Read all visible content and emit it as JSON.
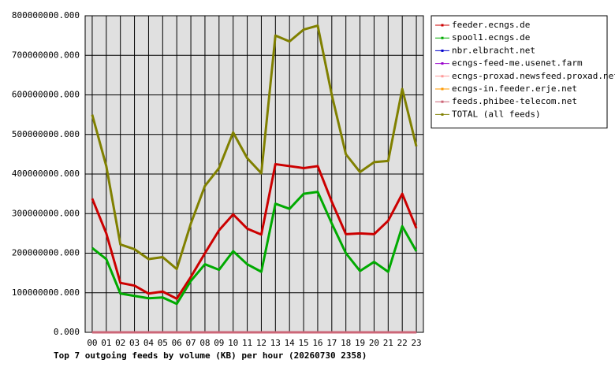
{
  "chart_data": {
    "type": "line",
    "title": "Top 7 outgoing feeds by volume (KB) per hour (20260730 2358)",
    "categories": [
      "00",
      "01",
      "02",
      "03",
      "04",
      "05",
      "06",
      "07",
      "08",
      "09",
      "10",
      "11",
      "12",
      "13",
      "14",
      "15",
      "16",
      "17",
      "18",
      "19",
      "20",
      "21",
      "22",
      "23"
    ],
    "ylim": [
      0,
      800000000
    ],
    "yticks": [
      {
        "value": 0,
        "label": "0.000"
      },
      {
        "value": 100000000,
        "label": "100000000.000"
      },
      {
        "value": 200000000,
        "label": "200000000.000"
      },
      {
        "value": 300000000,
        "label": "300000000.000"
      },
      {
        "value": 400000000,
        "label": "400000000.000"
      },
      {
        "value": 500000000,
        "label": "500000000.000"
      },
      {
        "value": 600000000,
        "label": "600000000.000"
      },
      {
        "value": 700000000,
        "label": "700000000.000"
      },
      {
        "value": 800000000,
        "label": "800000000.000"
      }
    ],
    "grid": true,
    "legend": "right",
    "series": [
      {
        "name": "feeder.ecngs.de",
        "color": "#cc0000",
        "values": [
          338000000,
          250000000,
          125000000,
          118000000,
          98000000,
          103000000,
          85000000,
          140000000,
          200000000,
          258000000,
          298000000,
          262000000,
          247000000,
          425000000,
          420000000,
          415000000,
          420000000,
          330000000,
          248000000,
          250000000,
          248000000,
          282000000,
          350000000,
          263000000
        ]
      },
      {
        "name": "spool1.ecngs.de",
        "color": "#00aa00",
        "values": [
          213000000,
          185000000,
          98000000,
          92000000,
          86000000,
          88000000,
          72000000,
          130000000,
          172000000,
          158000000,
          205000000,
          172000000,
          153000000,
          325000000,
          312000000,
          350000000,
          355000000,
          275000000,
          200000000,
          155000000,
          178000000,
          153000000,
          268000000,
          205000000
        ]
      },
      {
        "name": "nbr.elbracht.net",
        "color": "#0000cc",
        "values": [
          0,
          0,
          0,
          0,
          0,
          0,
          0,
          0,
          0,
          0,
          0,
          0,
          0,
          0,
          0,
          0,
          0,
          0,
          0,
          0,
          0,
          0,
          0,
          0
        ]
      },
      {
        "name": "ecngs-feed-me.usenet.farm",
        "color": "#9900cc",
        "values": [
          0,
          0,
          0,
          0,
          0,
          0,
          0,
          0,
          0,
          0,
          0,
          0,
          0,
          0,
          0,
          0,
          0,
          0,
          0,
          0,
          0,
          0,
          0,
          0
        ]
      },
      {
        "name": "ecngs-proxad.newsfeed.proxad.net",
        "color": "#ff9999",
        "values": [
          0,
          0,
          0,
          0,
          0,
          0,
          0,
          0,
          0,
          0,
          0,
          0,
          0,
          0,
          0,
          0,
          0,
          0,
          0,
          0,
          0,
          0,
          0,
          0
        ]
      },
      {
        "name": "ecngs-in.feeder.erje.net",
        "color": "#ff9900",
        "values": [
          0,
          0,
          0,
          0,
          0,
          0,
          0,
          0,
          0,
          0,
          0,
          0,
          0,
          0,
          0,
          0,
          0,
          0,
          0,
          0,
          0,
          0,
          0,
          0
        ]
      },
      {
        "name": "feeds.phibee-telecom.net",
        "color": "#cc6677",
        "values": [
          0,
          0,
          0,
          0,
          0,
          0,
          0,
          0,
          0,
          0,
          0,
          0,
          0,
          0,
          0,
          0,
          0,
          0,
          0,
          0,
          0,
          0,
          0,
          0
        ]
      },
      {
        "name": "TOTAL (all feeds)",
        "color": "#808000",
        "values": [
          550000000,
          420000000,
          222000000,
          210000000,
          185000000,
          190000000,
          160000000,
          275000000,
          370000000,
          415000000,
          505000000,
          440000000,
          402000000,
          750000000,
          735000000,
          765000000,
          775000000,
          600000000,
          450000000,
          405000000,
          430000000,
          433000000,
          615000000,
          470000000
        ]
      }
    ]
  }
}
